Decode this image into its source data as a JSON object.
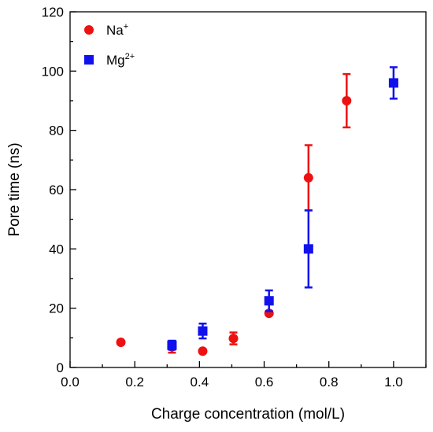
{
  "chart_data": {
    "type": "scatter",
    "title": "",
    "xlabel": "Charge concentration (mol/L)",
    "ylabel": "Pore time (ns)",
    "xlim": [
      0.0,
      1.1
    ],
    "ylim": [
      0,
      120
    ],
    "x_ticks": [
      "0.0",
      "0.2",
      "0.4",
      "0.6",
      "0.8",
      "1.0"
    ],
    "y_ticks": [
      "0",
      "20",
      "40",
      "60",
      "80",
      "100",
      "120"
    ],
    "grid": false,
    "legend_position": "top-left",
    "series": [
      {
        "name": "Na",
        "name_superscript": "+",
        "marker": "circle",
        "color": "#ee1111",
        "points": [
          {
            "x": 0.157,
            "y": 8.5,
            "err": 0
          },
          {
            "x": 0.315,
            "y": 7.0,
            "err": 2.0
          },
          {
            "x": 0.41,
            "y": 5.5,
            "err": 0
          },
          {
            "x": 0.505,
            "y": 9.8,
            "err": 2.0
          },
          {
            "x": 0.615,
            "y": 18.3,
            "err": 0
          },
          {
            "x": 0.737,
            "y": 64.0,
            "err": 11.0
          },
          {
            "x": 0.855,
            "y": 90.0,
            "err": 9.0
          }
        ]
      },
      {
        "name": "Mg",
        "name_superscript": "2+",
        "marker": "square",
        "color": "#1111ee",
        "points": [
          {
            "x": 0.315,
            "y": 7.5,
            "err": 1.5
          },
          {
            "x": 0.41,
            "y": 12.3,
            "err": 2.5
          },
          {
            "x": 0.615,
            "y": 22.5,
            "err": 3.5
          },
          {
            "x": 0.737,
            "y": 40.0,
            "err": 13.0
          },
          {
            "x": 1.0,
            "y": 96.0,
            "err": 5.3
          }
        ]
      }
    ]
  }
}
